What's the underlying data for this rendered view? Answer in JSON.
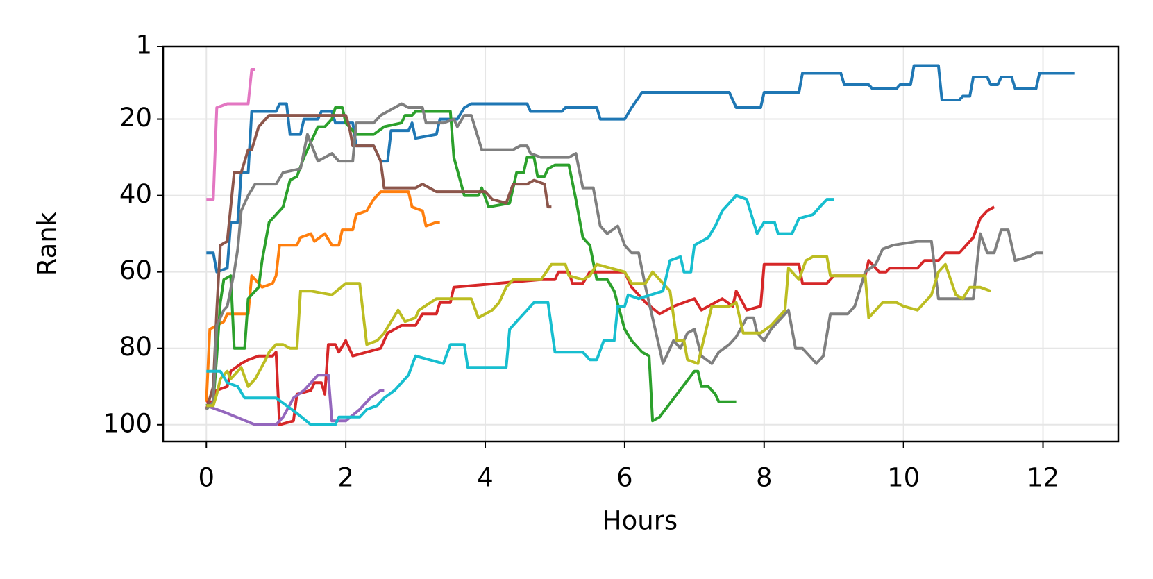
{
  "chart_data": {
    "type": "line",
    "xlabel": "Hours",
    "ylabel": "Rank",
    "xlim": [
      -0.62,
      13.08
    ],
    "ylim": [
      104.4,
      1
    ],
    "xticks": [
      0,
      2,
      4,
      6,
      8,
      10,
      12
    ],
    "yticks": [
      1,
      20,
      40,
      60,
      80,
      100
    ],
    "grid": true,
    "series": [
      {
        "color": "#1f77b4",
        "x": [
          0,
          0.1,
          0.15,
          0.3,
          0.35,
          0.45,
          0.5,
          0.6,
          0.65,
          1.0,
          1.05,
          1.15,
          1.2,
          1.35,
          1.4,
          1.6,
          1.65,
          1.8,
          1.85,
          2.1,
          2.15,
          2.4,
          2.5,
          2.6,
          2.65,
          2.9,
          2.95,
          3.0,
          3.3,
          3.35,
          3.6,
          3.7,
          3.8,
          4.6,
          4.65,
          5.1,
          5.15,
          5.6,
          5.65,
          6.0,
          6.1,
          6.25,
          7.5,
          7.6,
          7.95,
          8.0,
          8.5,
          8.55,
          9.1,
          9.15,
          9.5,
          9.55,
          9.9,
          9.95,
          10.1,
          10.15,
          10.5,
          10.55,
          10.8,
          10.85,
          10.95,
          11.0,
          11.2,
          11.25,
          11.35,
          11.4,
          11.55,
          11.6,
          11.9,
          11.95,
          12.45
        ],
        "values": [
          55,
          55,
          60,
          59,
          47,
          47,
          34,
          34,
          18,
          18,
          16,
          16,
          24,
          24,
          20,
          20,
          18,
          18,
          21,
          21,
          27,
          27,
          31,
          31,
          23,
          23,
          21,
          25,
          24,
          20,
          20,
          17,
          16,
          16,
          18,
          18,
          17,
          17,
          20,
          20,
          17,
          13,
          13,
          17,
          17,
          13,
          13,
          8,
          8,
          11,
          11,
          12,
          12,
          11,
          11,
          6,
          6,
          15,
          15,
          14,
          14,
          9,
          9,
          11,
          11,
          9,
          9,
          12,
          12,
          8,
          8
        ]
      },
      {
        "color": "#ff7f0e",
        "x": [
          0,
          0.05,
          0.25,
          0.3,
          0.6,
          0.65,
          0.8,
          0.95,
          1.0,
          1.05,
          1.3,
          1.35,
          1.5,
          1.55,
          1.7,
          1.8,
          1.9,
          1.95,
          2.1,
          2.15,
          2.3,
          2.4,
          2.5,
          2.9,
          2.95,
          3.1,
          3.15,
          3.3,
          3.35
        ],
        "values": [
          94,
          75,
          73,
          71,
          71,
          61,
          64,
          63,
          61,
          53,
          53,
          51,
          50,
          52,
          50,
          53,
          53,
          49,
          49,
          45,
          44,
          41,
          39,
          39,
          43,
          44,
          48,
          47,
          47
        ]
      },
      {
        "color": "#2ca02c",
        "x": [
          0,
          0.1,
          0.15,
          0.2,
          0.25,
          0.35,
          0.4,
          0.55,
          0.6,
          0.75,
          0.8,
          0.9,
          1.0,
          1.1,
          1.2,
          1.3,
          1.4,
          1.45,
          1.6,
          1.7,
          1.8,
          1.85,
          1.95,
          2.0,
          2.15,
          2.4,
          2.55,
          2.8,
          2.85,
          2.95,
          3.0,
          3.5,
          3.55,
          3.7,
          3.9,
          3.95,
          4.05,
          4.35,
          4.45,
          4.55,
          4.6,
          4.7,
          4.75,
          4.85,
          4.9,
          5.0,
          5.2,
          5.3,
          5.4,
          5.5,
          5.6,
          5.75,
          5.85,
          6.0,
          6.1,
          6.25,
          6.35,
          6.4,
          6.5,
          7.0,
          7.05,
          7.1,
          7.2,
          7.3,
          7.35,
          7.6
        ],
        "values": [
          95,
          94,
          82,
          68,
          62,
          61,
          80,
          80,
          67,
          64,
          57,
          47,
          45,
          43,
          36,
          35,
          30,
          28,
          22,
          22,
          20,
          17,
          17,
          21,
          24,
          24,
          22,
          21,
          19,
          19,
          18,
          18,
          30,
          40,
          40,
          38,
          43,
          42,
          34,
          34,
          30,
          30,
          35,
          35,
          33,
          32,
          32,
          41,
          51,
          53,
          62,
          62,
          65,
          75,
          78,
          81,
          82,
          99,
          98,
          86,
          86,
          90,
          90,
          92,
          94,
          94
        ]
      },
      {
        "color": "#d62728",
        "x": [
          0,
          0.1,
          0.15,
          0.3,
          0.35,
          0.5,
          0.6,
          0.75,
          0.95,
          1.0,
          1.05,
          1.25,
          1.3,
          1.5,
          1.55,
          1.65,
          1.7,
          1.75,
          1.85,
          1.9,
          2.0,
          2.1,
          2.5,
          2.6,
          2.8,
          3.0,
          3.1,
          3.3,
          3.35,
          3.5,
          3.55,
          4.8,
          5.0,
          5.05,
          5.2,
          5.25,
          5.4,
          5.5,
          6.0,
          6.1,
          6.3,
          6.5,
          6.6,
          6.7,
          7.0,
          7.1,
          7.4,
          7.55,
          7.6,
          7.75,
          7.95,
          8.0,
          8.5,
          8.55,
          8.9,
          9.0,
          9.45,
          9.5,
          9.65,
          9.75,
          9.8,
          10.2,
          10.3,
          10.5,
          10.6,
          10.8,
          10.9,
          11.0,
          11.1,
          11.2,
          11.3
        ],
        "values": [
          94,
          94,
          91,
          90,
          86,
          84,
          83,
          82,
          82,
          81,
          100,
          99,
          92,
          91,
          89,
          89,
          92,
          79,
          79,
          81,
          78,
          82,
          80,
          76,
          74,
          74,
          71,
          71,
          68,
          68,
          64,
          62,
          62,
          60,
          60,
          63,
          63,
          60,
          60,
          64,
          68,
          71,
          70,
          69,
          67,
          70,
          67,
          69,
          65,
          70,
          69,
          58,
          58,
          63,
          63,
          61,
          61,
          57,
          60,
          60,
          59,
          59,
          57,
          57,
          55,
          55,
          53,
          51,
          46,
          44,
          43
        ]
      },
      {
        "color": "#9467bd",
        "x": [
          0,
          0.3,
          0.7,
          1.0,
          1.1,
          1.25,
          1.4,
          1.5,
          1.6,
          1.75,
          1.8,
          2.0,
          2.2,
          2.35,
          2.5,
          2.55
        ],
        "values": [
          95,
          97,
          100,
          100,
          98,
          93,
          91,
          89,
          87,
          87,
          99,
          99,
          96,
          93,
          91,
          91
        ]
      },
      {
        "color": "#8c564b",
        "x": [
          0,
          0.05,
          0.1,
          0.15,
          0.2,
          0.3,
          0.35,
          0.4,
          0.5,
          0.55,
          0.6,
          0.65,
          0.75,
          0.85,
          0.9,
          1.0,
          2.0,
          2.05,
          2.1,
          2.4,
          2.5,
          2.55,
          3.0,
          3.1,
          3.2,
          3.3,
          4.0,
          4.1,
          4.3,
          4.4,
          4.6,
          4.7,
          4.85,
          4.9,
          4.95
        ],
        "values": [
          96,
          93,
          90,
          70,
          53,
          52,
          43,
          34,
          34,
          31,
          28,
          28,
          22,
          20,
          19,
          19,
          19,
          22,
          27,
          27,
          31,
          38,
          38,
          37,
          38,
          39,
          39,
          41,
          42,
          37,
          37,
          36,
          37,
          43,
          43
        ]
      },
      {
        "color": "#e377c2",
        "x": [
          0,
          0.1,
          0.15,
          0.3,
          0.55,
          0.6,
          0.65,
          0.7
        ],
        "values": [
          41,
          41,
          17,
          16,
          16,
          16,
          7,
          7
        ]
      },
      {
        "color": "#7f7f7f",
        "x": [
          0,
          0.1,
          0.15,
          0.25,
          0.3,
          0.4,
          0.45,
          0.5,
          0.6,
          0.7,
          1.0,
          1.1,
          1.35,
          1.45,
          1.6,
          1.8,
          1.9,
          2.1,
          2.15,
          2.4,
          2.5,
          2.7,
          2.8,
          2.9,
          3.1,
          3.15,
          3.4,
          3.55,
          3.6,
          3.7,
          3.8,
          3.9,
          3.95,
          4.4,
          4.5,
          4.6,
          4.65,
          4.8,
          5.2,
          5.3,
          5.4,
          5.55,
          5.65,
          5.75,
          5.9,
          6.0,
          6.1,
          6.2,
          6.3,
          6.5,
          6.55,
          6.7,
          6.8,
          6.9,
          7.0,
          7.1,
          7.25,
          7.35,
          7.5,
          7.6,
          7.75,
          7.85,
          7.9,
          8.0,
          8.1,
          8.2,
          8.35,
          8.45,
          8.55,
          8.65,
          8.75,
          8.85,
          8.95,
          9.2,
          9.3,
          9.45,
          9.6,
          9.7,
          9.85,
          10.2,
          10.4,
          10.5,
          10.8,
          11.0,
          11.1,
          11.2,
          11.3,
          11.4,
          11.5,
          11.6,
          11.8,
          11.9,
          12.0
        ],
        "values": [
          96,
          94,
          74,
          70,
          69,
          60,
          54,
          44,
          40,
          37,
          37,
          34,
          33,
          24,
          31,
          29,
          31,
          31,
          21,
          21,
          19,
          17,
          16,
          17,
          17,
          21,
          21,
          20,
          22,
          19,
          19,
          25,
          28,
          28,
          27,
          27,
          29,
          30,
          30,
          29,
          38,
          38,
          48,
          50,
          48,
          53,
          55,
          55,
          64,
          80,
          84,
          78,
          80,
          76,
          75,
          82,
          84,
          81,
          79,
          77,
          72,
          72,
          76,
          78,
          75,
          73,
          70,
          80,
          80,
          82,
          84,
          82,
          71,
          71,
          69,
          60,
          58,
          54,
          53,
          52,
          52,
          67,
          67,
          67,
          50,
          55,
          55,
          49,
          49,
          57,
          56,
          55,
          55
        ]
      },
      {
        "color": "#bcbd22",
        "x": [
          0,
          0.1,
          0.15,
          0.2,
          0.3,
          0.35,
          0.5,
          0.6,
          0.7,
          0.85,
          0.9,
          1.0,
          1.1,
          1.2,
          1.3,
          1.35,
          1.5,
          1.8,
          2.0,
          2.2,
          2.3,
          2.45,
          2.55,
          2.75,
          2.85,
          3.0,
          3.05,
          3.3,
          3.8,
          3.9,
          4.1,
          4.2,
          4.3,
          4.4,
          4.8,
          4.95,
          5.15,
          5.2,
          5.4,
          5.5,
          5.6,
          6.0,
          6.1,
          6.3,
          6.4,
          6.5,
          6.65,
          6.75,
          6.85,
          6.9,
          7.05,
          7.25,
          7.5,
          7.6,
          7.7,
          7.95,
          8.1,
          8.3,
          8.35,
          8.5,
          8.6,
          8.7,
          8.9,
          8.95,
          9.45,
          9.5,
          9.6,
          9.7,
          9.9,
          10.0,
          10.2,
          10.4,
          10.5,
          10.6,
          10.75,
          10.85,
          10.95,
          11.1,
          11.25
        ],
        "values": [
          95,
          95,
          92,
          88,
          86,
          88,
          85,
          90,
          88,
          83,
          81,
          79,
          79,
          80,
          80,
          65,
          65,
          66,
          63,
          63,
          79,
          78,
          76,
          70,
          73,
          72,
          70,
          67,
          67,
          72,
          70,
          68,
          64,
          62,
          62,
          58,
          58,
          61,
          62,
          61,
          58,
          60,
          63,
          63,
          60,
          62,
          65,
          78,
          78,
          83,
          84,
          69,
          69,
          68,
          76,
          76,
          74,
          70,
          59,
          62,
          57,
          56,
          56,
          61,
          61,
          72,
          70,
          68,
          68,
          69,
          70,
          66,
          60,
          58,
          66,
          67,
          64,
          64,
          65
        ]
      },
      {
        "color": "#17becf",
        "x": [
          0,
          0.2,
          0.3,
          0.45,
          0.55,
          1.0,
          1.15,
          1.3,
          1.5,
          1.85,
          1.9,
          2.2,
          2.3,
          2.45,
          2.55,
          2.7,
          2.9,
          3.0,
          3.2,
          3.4,
          3.5,
          3.7,
          3.75,
          4.3,
          4.35,
          4.5,
          4.6,
          4.7,
          4.9,
          5.0,
          5.4,
          5.5,
          5.6,
          5.7,
          5.85,
          5.9,
          6.0,
          6.05,
          6.2,
          6.55,
          6.65,
          6.8,
          6.85,
          6.95,
          7.0,
          7.2,
          7.3,
          7.4,
          7.6,
          7.75,
          7.8,
          7.9,
          8.0,
          8.15,
          8.2,
          8.4,
          8.5,
          8.7,
          8.8,
          8.9,
          9.0
        ],
        "values": [
          86,
          86,
          89,
          90,
          93,
          93,
          95,
          97,
          100,
          100,
          98,
          98,
          96,
          95,
          93,
          91,
          87,
          82,
          83,
          84,
          79,
          79,
          85,
          85,
          75,
          72,
          70,
          68,
          68,
          81,
          81,
          83,
          83,
          78,
          78,
          69,
          69,
          66,
          67,
          65,
          57,
          56,
          60,
          60,
          53,
          51,
          48,
          44,
          40,
          41,
          44,
          50,
          47,
          47,
          50,
          50,
          46,
          45,
          43,
          41,
          41
        ]
      }
    ]
  }
}
